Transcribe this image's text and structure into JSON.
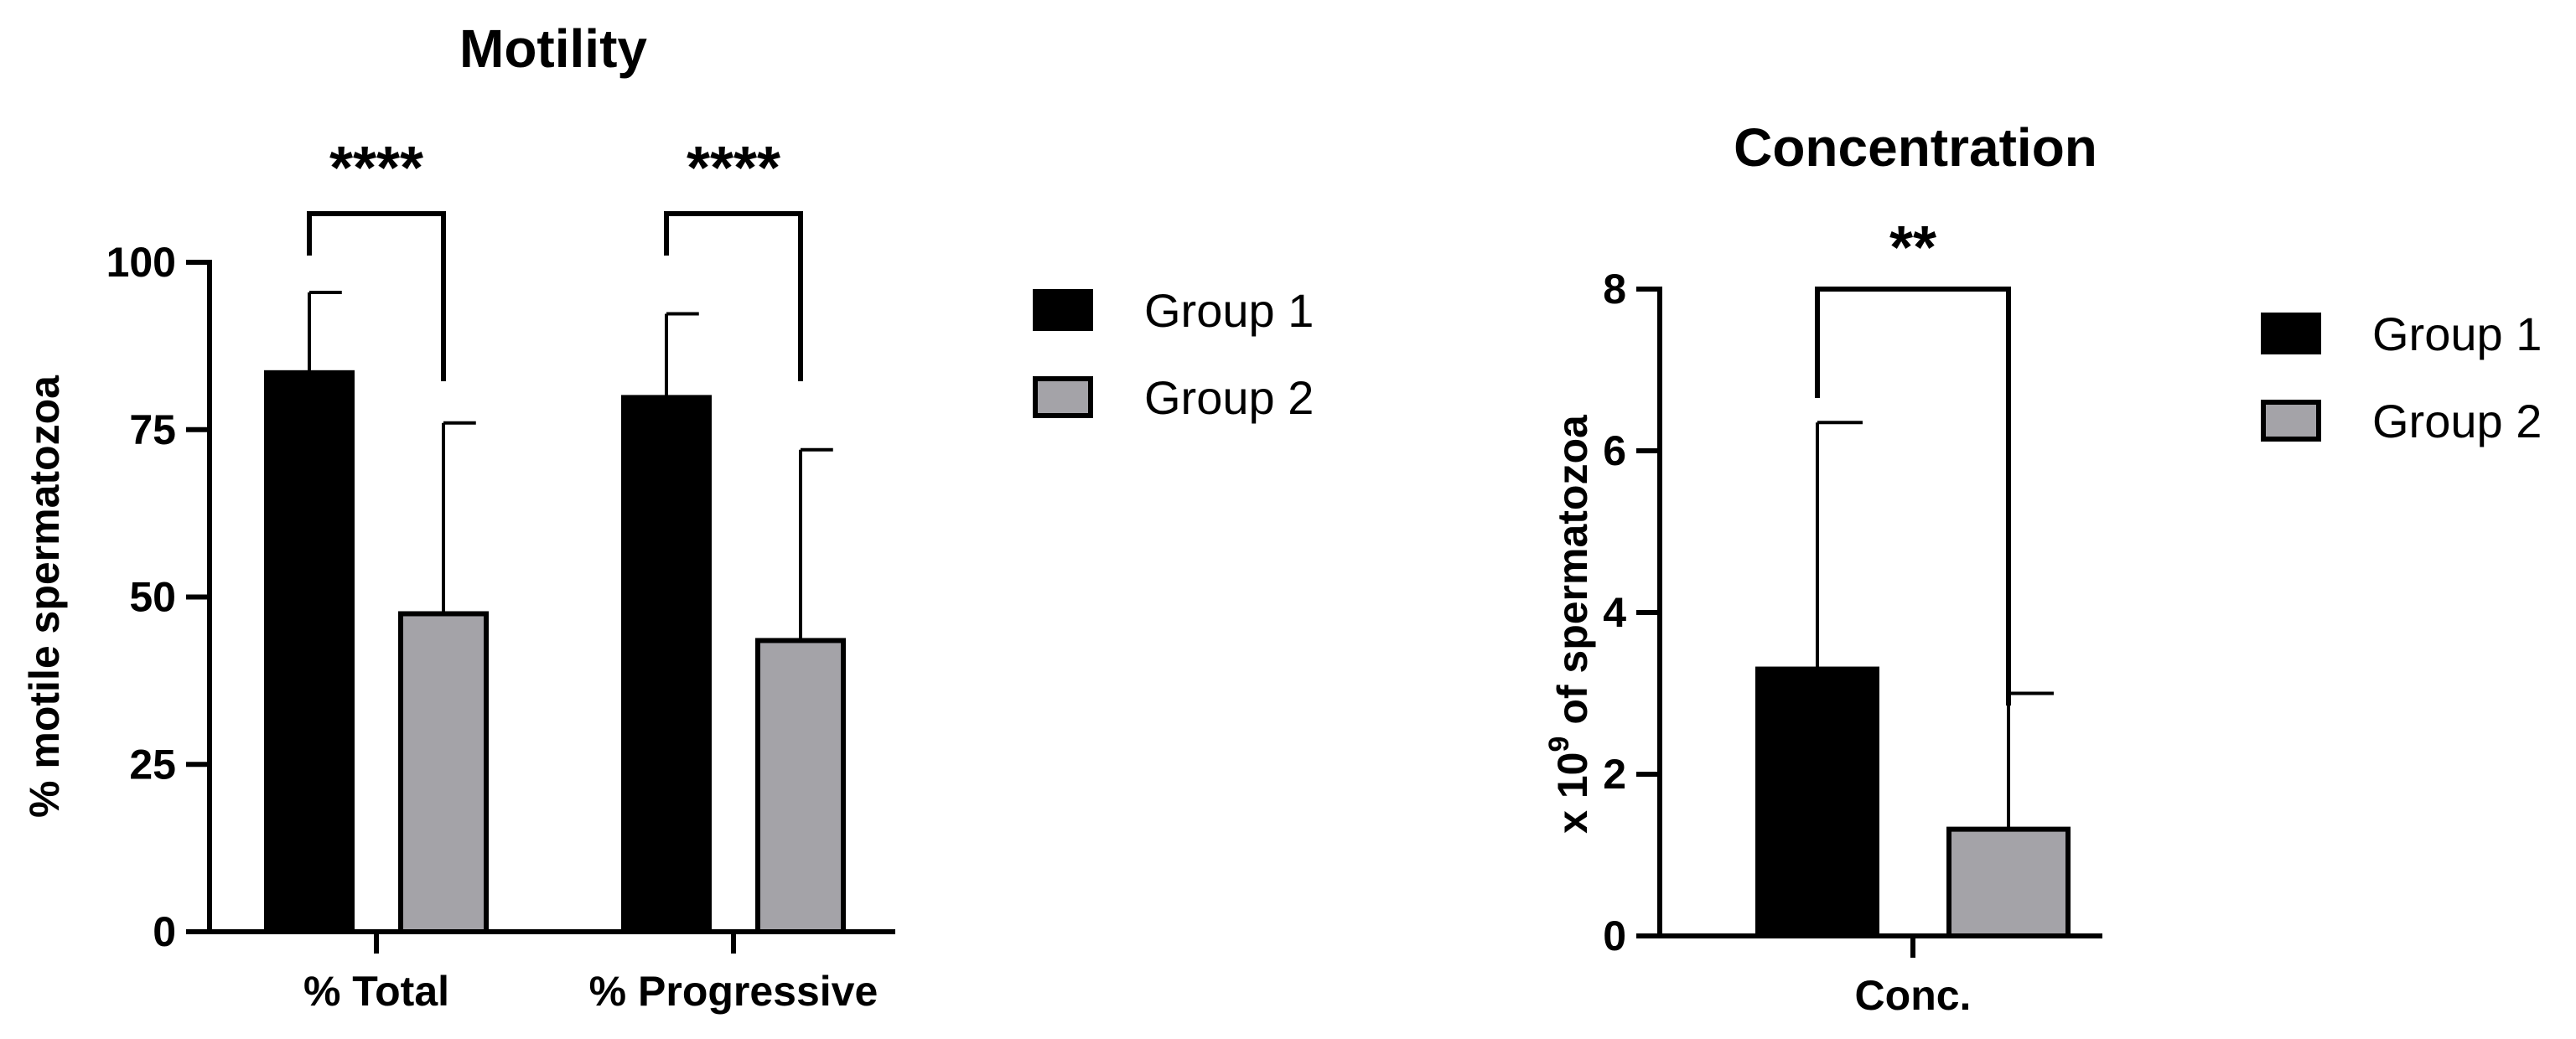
{
  "chart_data": [
    {
      "type": "bar",
      "title": "Motility",
      "xlabel": "",
      "ylabel": "% motile spermatozoa",
      "ylim": [
        0,
        100
      ],
      "yticks": [
        0,
        25,
        50,
        75,
        100
      ],
      "categories": [
        "% Total",
        "% Progressive"
      ],
      "series": [
        {
          "name": "Group 1",
          "color": "#000000",
          "values": [
            83.5,
            79.8
          ],
          "errors": [
            12.0,
            12.5
          ]
        },
        {
          "name": "Group 2",
          "color": "#a4a3a8",
          "values": [
            47.5,
            43.5
          ],
          "errors": [
            28.5,
            28.5
          ]
        }
      ],
      "significance": [
        {
          "category": 0,
          "label": "****"
        },
        {
          "category": 1,
          "label": "****"
        }
      ],
      "legend": [
        "Group 1",
        "Group 2"
      ]
    },
    {
      "type": "bar",
      "title": "Concentration",
      "xlabel": "",
      "ylabel": "x 10",
      "ylabel_sup": "9",
      "ylabel_suffix": " of spermatozoa",
      "ylim": [
        0,
        8
      ],
      "yticks": [
        0,
        2,
        4,
        6,
        8
      ],
      "categories": [
        "Conc."
      ],
      "series": [
        {
          "name": "Group 1",
          "color": "#000000",
          "values": [
            3.3
          ],
          "errors": [
            3.05
          ]
        },
        {
          "name": "Group 2",
          "color": "#a4a3a8",
          "values": [
            1.32
          ],
          "errors": [
            1.68
          ]
        }
      ],
      "significance": [
        {
          "category": 0,
          "label": "**"
        }
      ],
      "legend": [
        "Group 1",
        "Group 2"
      ]
    }
  ]
}
